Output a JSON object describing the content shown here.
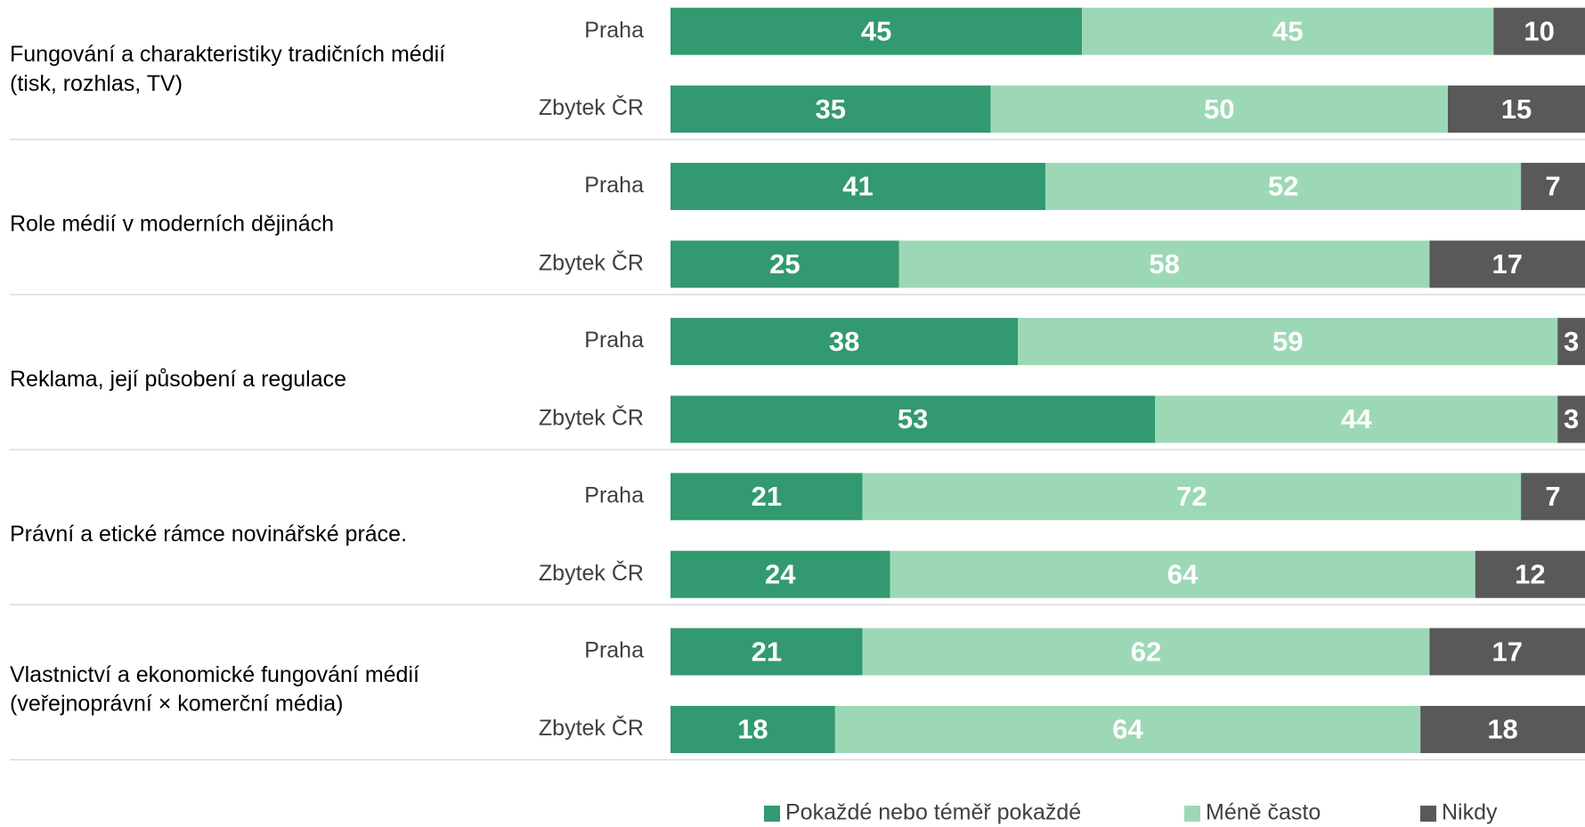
{
  "chart_data": {
    "type": "bar",
    "orientation": "horizontal",
    "stacked": true,
    "groups": [
      [
        "Fungování a charakteristiky tradičních médií",
        "(tisk, rozhlas, TV)"
      ],
      [
        "Role médií v moderních dějinách"
      ],
      [
        "Reklama, její působení a regulace"
      ],
      [
        "Právní a etické rámce novinářské práce."
      ],
      [
        "Vlastnictví a ekonomické fungování médií",
        "(veřejnoprávní × komerční média)"
      ]
    ],
    "categories": [
      "Praha",
      "Zbytek ČR",
      "Praha",
      "Zbytek ČR",
      "Praha",
      "Zbytek ČR",
      "Praha",
      "Zbytek ČR",
      "Praha",
      "Zbytek ČR"
    ],
    "series": [
      {
        "name": "Pokaždé nebo téměř pokaždé",
        "color": "#339970",
        "values": [
          45,
          35,
          41,
          25,
          38,
          53,
          21,
          24,
          21,
          18
        ]
      },
      {
        "name": "Méně často",
        "color": "#9dd8b6",
        "values": [
          45,
          50,
          52,
          58,
          59,
          44,
          72,
          64,
          62,
          64
        ]
      },
      {
        "name": "Nikdy",
        "color": "#595959",
        "values": [
          10,
          15,
          7,
          17,
          3,
          3,
          7,
          12,
          17,
          18
        ]
      }
    ],
    "xlim": [
      0,
      100
    ],
    "legend": "bottom"
  }
}
